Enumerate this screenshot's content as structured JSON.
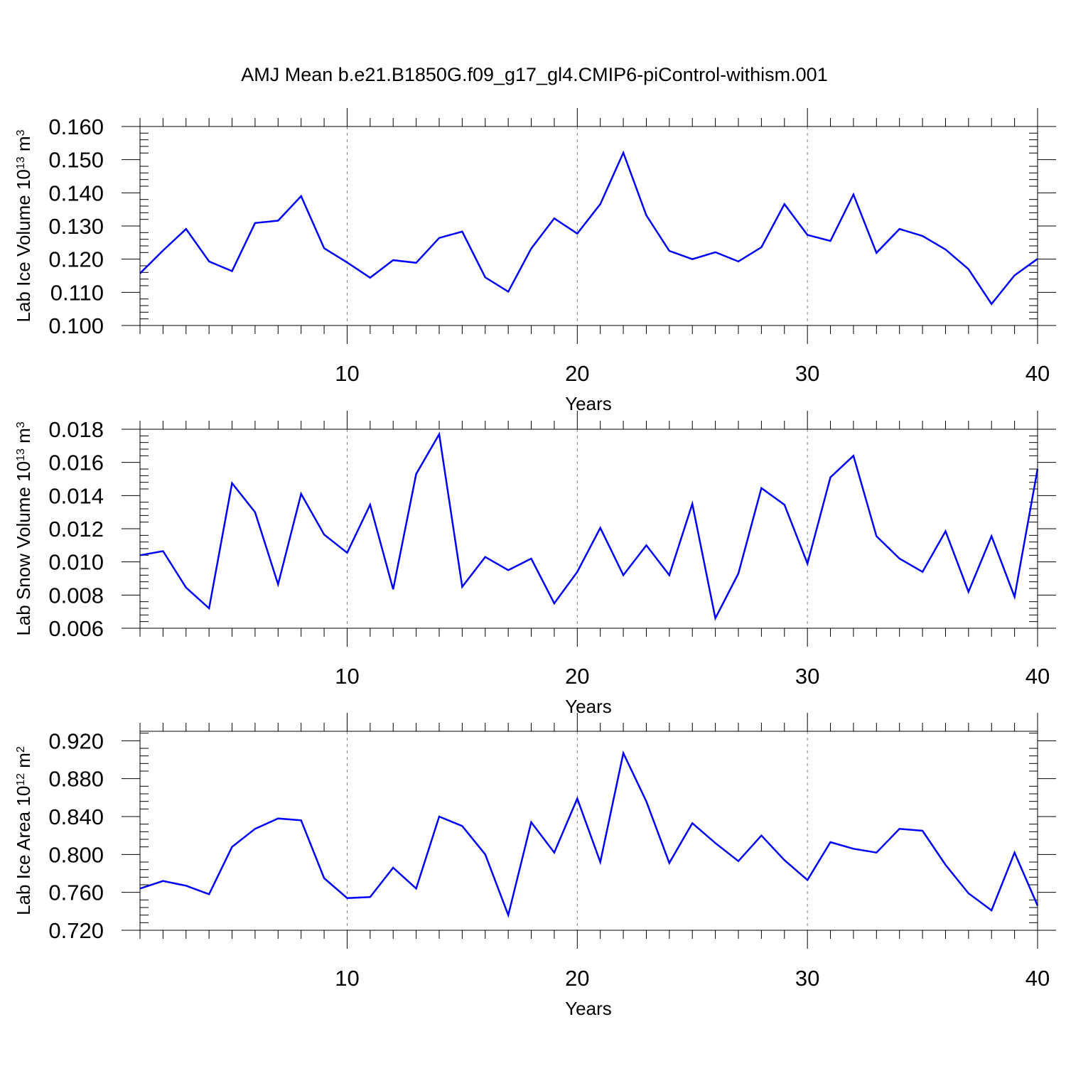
{
  "title": "AMJ Mean b.e21.B1850G.f09_g17_gl4.CMIP6-piControl-withism.001",
  "colors": {
    "line": "#0000ff",
    "axes": "#000000",
    "grid": "#808080"
  },
  "chart_data": [
    {
      "type": "line",
      "title": "AMJ Mean b.e21.B1850G.f09_g17_gl4.CMIP6-piControl-withism.001",
      "xlabel": "Years",
      "ylabel": "Lab Ice Volume 10",
      "ylabel_exp": "13",
      "ylabel_unit": " m",
      "ylabel_unit_exp": "3",
      "xlim": [
        1,
        40
      ],
      "ylim": [
        0.1,
        0.16
      ],
      "xticks": [
        10,
        20,
        30,
        40
      ],
      "yticks": [
        0.1,
        0.11,
        0.12,
        0.13,
        0.14,
        0.15,
        0.16
      ],
      "ytick_labels": [
        "0.100",
        "0.110",
        "0.120",
        "0.130",
        "0.140",
        "0.150",
        "0.160"
      ],
      "grid": "vertical dashed at major x ticks",
      "x": [
        1,
        2,
        3,
        4,
        5,
        6,
        7,
        8,
        9,
        10,
        11,
        12,
        13,
        14,
        15,
        16,
        17,
        18,
        19,
        20,
        21,
        22,
        23,
        24,
        25,
        26,
        27,
        28,
        29,
        30,
        31,
        32,
        33,
        34,
        35,
        36,
        37,
        38,
        39,
        40
      ],
      "y": [
        0.1157,
        0.1226,
        0.1291,
        0.1193,
        0.1164,
        0.1309,
        0.1316,
        0.139,
        0.1233,
        0.119,
        0.1144,
        0.1197,
        0.1189,
        0.1264,
        0.1283,
        0.1145,
        0.1102,
        0.1232,
        0.1323,
        0.1277,
        0.1366,
        0.1521,
        0.1332,
        0.1225,
        0.12,
        0.1221,
        0.1193,
        0.1236,
        0.1366,
        0.1273,
        0.1255,
        0.1395,
        0.1219,
        0.1291,
        0.127,
        0.1229,
        0.117,
        0.1065,
        0.1151,
        0.1201
      ]
    },
    {
      "type": "line",
      "xlabel": "Years",
      "ylabel": "Lab Snow Volume 10",
      "ylabel_exp": "13",
      "ylabel_unit": " m",
      "ylabel_unit_exp": "3",
      "xlim": [
        1,
        40
      ],
      "ylim": [
        0.006,
        0.018
      ],
      "xticks": [
        10,
        20,
        30,
        40
      ],
      "yticks": [
        0.006,
        0.008,
        0.01,
        0.012,
        0.014,
        0.016,
        0.018
      ],
      "ytick_labels": [
        "0.006",
        "0.008",
        "0.010",
        "0.012",
        "0.014",
        "0.016",
        "0.018"
      ],
      "grid": "vertical dashed at major x ticks",
      "x": [
        1,
        2,
        3,
        4,
        5,
        6,
        7,
        8,
        9,
        10,
        11,
        12,
        13,
        14,
        15,
        16,
        17,
        18,
        19,
        20,
        21,
        22,
        23,
        24,
        25,
        26,
        27,
        28,
        29,
        30,
        31,
        32,
        33,
        34,
        35,
        36,
        37,
        38,
        39,
        40
      ],
      "y": [
        0.0104,
        0.01065,
        0.00845,
        0.0072,
        0.01475,
        0.013,
        0.00865,
        0.0141,
        0.01165,
        0.01055,
        0.01345,
        0.00835,
        0.0153,
        0.0177,
        0.0085,
        0.0103,
        0.0095,
        0.0102,
        0.0075,
        0.0094,
        0.01205,
        0.0092,
        0.011,
        0.0092,
        0.0135,
        0.0066,
        0.0093,
        0.01445,
        0.01345,
        0.0099,
        0.0151,
        0.0164,
        0.01155,
        0.0102,
        0.0094,
        0.01185,
        0.0082,
        0.01155,
        0.0079,
        0.0156
      ]
    },
    {
      "type": "line",
      "xlabel": "Years",
      "ylabel": "Lab Ice Area 10",
      "ylabel_exp": "12",
      "ylabel_unit": " m",
      "ylabel_unit_exp": "2",
      "xlim": [
        1,
        40
      ],
      "ylim": [
        0.72,
        0.93
      ],
      "xticks": [
        10,
        20,
        30,
        40
      ],
      "yticks": [
        0.72,
        0.76,
        0.8,
        0.84,
        0.88,
        0.92
      ],
      "ytick_labels": [
        "0.720",
        "0.760",
        "0.800",
        "0.840",
        "0.880",
        "0.920"
      ],
      "grid": "vertical dashed at major x ticks",
      "x": [
        1,
        2,
        3,
        4,
        5,
        6,
        7,
        8,
        9,
        10,
        11,
        12,
        13,
        14,
        15,
        16,
        17,
        18,
        19,
        20,
        21,
        22,
        23,
        24,
        25,
        26,
        27,
        28,
        29,
        30,
        31,
        32,
        33,
        34,
        35,
        36,
        37,
        38,
        39,
        40
      ],
      "y": [
        0.764,
        0.772,
        0.767,
        0.758,
        0.808,
        0.827,
        0.838,
        0.836,
        0.775,
        0.754,
        0.755,
        0.786,
        0.764,
        0.84,
        0.83,
        0.8,
        0.736,
        0.834,
        0.802,
        0.859,
        0.792,
        0.907,
        0.856,
        0.791,
        0.833,
        0.812,
        0.793,
        0.82,
        0.794,
        0.773,
        0.813,
        0.806,
        0.802,
        0.827,
        0.825,
        0.789,
        0.759,
        0.741,
        0.802,
        0.746
      ]
    }
  ]
}
